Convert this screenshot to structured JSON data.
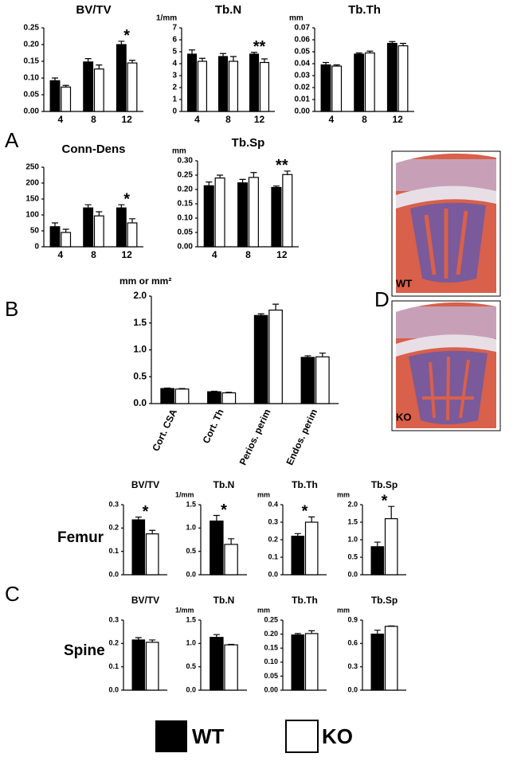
{
  "chart_data": [
    {
      "type": "bar",
      "title": "BV/TV",
      "categories": [
        "4",
        "8",
        "12"
      ],
      "ylim": [
        0,
        0.25
      ],
      "yticks": [
        {
          "value": 0,
          "label": "0.00"
        },
        {
          "value": 0.05,
          "label": "0.05"
        },
        {
          "value": 0.1,
          "label": "0.10"
        },
        {
          "value": 0.15,
          "label": "0.15"
        },
        {
          "value": 0.2,
          "label": "0.20"
        },
        {
          "value": 0.25,
          "label": "0.25"
        }
      ],
      "series": [
        {
          "name": "WT",
          "color": "#000000",
          "values": [
            0.092,
            0.148,
            0.2
          ],
          "errors": [
            0.008,
            0.01,
            0.01
          ]
        },
        {
          "name": "KO",
          "color": "#ffffff",
          "values": [
            0.073,
            0.127,
            0.145
          ],
          "errors": [
            0.005,
            0.012,
            0.008
          ]
        }
      ],
      "annotations": [
        null,
        null,
        "*"
      ]
    },
    {
      "type": "bar",
      "title": "Tb.N",
      "unit": "1/mm",
      "categories": [
        "4",
        "8",
        "12"
      ],
      "ylim": [
        0,
        7
      ],
      "yticks": [
        0,
        1,
        2,
        3,
        4,
        5,
        6,
        7
      ],
      "series": [
        {
          "name": "WT",
          "color": "#000000",
          "values": [
            4.8,
            4.6,
            4.8
          ],
          "errors": [
            0.35,
            0.25,
            0.15
          ]
        },
        {
          "name": "KO",
          "color": "#ffffff",
          "values": [
            4.2,
            4.2,
            4.1
          ],
          "errors": [
            0.25,
            0.4,
            0.3
          ]
        }
      ],
      "annotations": [
        null,
        null,
        "**"
      ]
    },
    {
      "type": "bar",
      "title": "Tb.Th",
      "unit": "mm",
      "categories": [
        "4",
        "8",
        "12"
      ],
      "ylim": [
        0,
        0.07
      ],
      "yticks": [
        {
          "value": 0,
          "label": "0.00"
        },
        {
          "value": 0.01,
          "label": "0.01"
        },
        {
          "value": 0.02,
          "label": "0.02"
        },
        {
          "value": 0.03,
          "label": "0.03"
        },
        {
          "value": 0.04,
          "label": "0.04"
        },
        {
          "value": 0.05,
          "label": "0.05"
        },
        {
          "value": 0.06,
          "label": "0.06"
        },
        {
          "value": 0.07,
          "label": "0.07"
        }
      ],
      "series": [
        {
          "name": "WT",
          "color": "#000000",
          "values": [
            0.039,
            0.048,
            0.057
          ],
          "errors": [
            0.002,
            0.001,
            0.0015
          ]
        },
        {
          "name": "KO",
          "color": "#ffffff",
          "values": [
            0.038,
            0.049,
            0.055
          ],
          "errors": [
            0.001,
            0.0015,
            0.002
          ]
        }
      ],
      "annotations": [
        null,
        null,
        null
      ]
    },
    {
      "type": "bar",
      "title": "Conn-Dens",
      "categories": [
        "4",
        "8",
        "12"
      ],
      "ylim": [
        0,
        250
      ],
      "yticks": [
        0,
        50,
        100,
        150,
        200,
        250
      ],
      "series": [
        {
          "name": "WT",
          "color": "#000000",
          "values": [
            63,
            122,
            122
          ],
          "errors": [
            12,
            10,
            10
          ]
        },
        {
          "name": "KO",
          "color": "#ffffff",
          "values": [
            45,
            97,
            75
          ],
          "errors": [
            10,
            13,
            13
          ]
        }
      ],
      "annotations": [
        null,
        null,
        "*"
      ]
    },
    {
      "type": "bar",
      "title": "Tb.Sp",
      "unit": "mm",
      "categories": [
        "4",
        "8",
        "12"
      ],
      "ylim": [
        0,
        0.3
      ],
      "yticks": [
        {
          "value": 0,
          "label": "0.00"
        },
        {
          "value": 0.05,
          "label": "0.05"
        },
        {
          "value": 0.1,
          "label": "0.10"
        },
        {
          "value": 0.15,
          "label": "0.15"
        },
        {
          "value": 0.2,
          "label": "0.20"
        },
        {
          "value": 0.25,
          "label": "0.25"
        },
        {
          "value": 0.3,
          "label": "0.30"
        }
      ],
      "series": [
        {
          "name": "WT",
          "color": "#000000",
          "values": [
            0.213,
            0.223,
            0.207
          ],
          "errors": [
            0.013,
            0.012,
            0.005
          ]
        },
        {
          "name": "KO",
          "color": "#ffffff",
          "values": [
            0.24,
            0.242,
            0.252
          ],
          "errors": [
            0.01,
            0.017,
            0.012
          ]
        }
      ],
      "annotations": [
        null,
        null,
        "**"
      ]
    },
    {
      "type": "bar",
      "unit": "mm or mm²",
      "categories": [
        "Cort. CSA",
        "Cort. Th",
        "Perios. perim",
        "Endos. perim"
      ],
      "ylim": [
        0,
        2
      ],
      "yticks": [
        {
          "value": 0,
          "label": "0.0"
        },
        0.5,
        {
          "value": 1,
          "label": "1.0"
        },
        1.5,
        {
          "value": 2,
          "label": "2.0"
        }
      ],
      "series": [
        {
          "name": "WT",
          "color": "#000000",
          "values": [
            0.28,
            0.22,
            1.64,
            0.86
          ],
          "errors": [
            0.01,
            0.01,
            0.03,
            0.03
          ]
        },
        {
          "name": "KO",
          "color": "#ffffff",
          "values": [
            0.27,
            0.2,
            1.74,
            0.87
          ],
          "errors": [
            0.01,
            0.01,
            0.11,
            0.07
          ]
        }
      ],
      "annotations": [
        null,
        null,
        null,
        null
      ]
    },
    {
      "type": "bar",
      "title": "BV/TV",
      "categories": [
        null
      ],
      "ylim": [
        0,
        0.3
      ],
      "yticks": [
        {
          "value": 0,
          "label": "0.0"
        },
        0.1,
        0.2,
        0.3
      ],
      "series": [
        {
          "name": "WT",
          "color": "#000000",
          "values": [
            0.235
          ],
          "errors": [
            0.012
          ]
        },
        {
          "name": "KO",
          "color": "#ffffff",
          "values": [
            0.175
          ],
          "errors": [
            0.015
          ]
        }
      ],
      "annotations": [
        "*"
      ]
    },
    {
      "type": "bar",
      "title": "Tb.N",
      "unit": "1/mm",
      "categories": [
        null
      ],
      "ylim": [
        0,
        1.5
      ],
      "yticks": [
        {
          "value": 0,
          "label": "0.0"
        },
        0.5,
        {
          "value": 1,
          "label": "1.0"
        },
        1.5
      ],
      "series": [
        {
          "name": "WT",
          "color": "#000000",
          "values": [
            1.15
          ],
          "errors": [
            0.12
          ]
        },
        {
          "name": "KO",
          "color": "#ffffff",
          "values": [
            0.65
          ],
          "errors": [
            0.12
          ]
        }
      ],
      "annotations": [
        "*"
      ]
    },
    {
      "type": "bar",
      "title": "Tb.Th",
      "unit": "mm",
      "categories": [
        null
      ],
      "ylim": [
        0,
        0.4
      ],
      "yticks": [
        {
          "value": 0,
          "label": "0.0"
        },
        0.1,
        0.2,
        0.3,
        0.4
      ],
      "series": [
        {
          "name": "WT",
          "color": "#000000",
          "values": [
            0.22
          ],
          "errors": [
            0.015
          ]
        },
        {
          "name": "KO",
          "color": "#ffffff",
          "values": [
            0.3
          ],
          "errors": [
            0.03
          ]
        }
      ],
      "annotations": [
        "*"
      ]
    },
    {
      "type": "bar",
      "title": "Tb.Sp",
      "unit": "mm",
      "categories": [
        null
      ],
      "ylim": [
        0,
        2
      ],
      "yticks": [
        {
          "value": 0,
          "label": "0.0"
        },
        0.5,
        {
          "value": 1,
          "label": "1.0"
        },
        1.5,
        {
          "value": 2,
          "label": "2.0"
        }
      ],
      "series": [
        {
          "name": "WT",
          "color": "#000000",
          "values": [
            0.8
          ],
          "errors": [
            0.13
          ]
        },
        {
          "name": "KO",
          "color": "#ffffff",
          "values": [
            1.6
          ],
          "errors": [
            0.35
          ]
        }
      ],
      "annotations": [
        "*"
      ]
    },
    {
      "type": "bar",
      "title": "BV/TV",
      "categories": [
        null
      ],
      "ylim": [
        0,
        0.3
      ],
      "yticks": [
        {
          "value": 0,
          "label": "0.0"
        },
        0.1,
        0.2,
        0.3
      ],
      "series": [
        {
          "name": "WT",
          "color": "#000000",
          "values": [
            0.215
          ],
          "errors": [
            0.01
          ]
        },
        {
          "name": "KO",
          "color": "#ffffff",
          "values": [
            0.205
          ],
          "errors": [
            0.01
          ]
        }
      ],
      "annotations": [
        null
      ]
    },
    {
      "type": "bar",
      "title": "Tb.N",
      "unit": "1/mm",
      "categories": [
        null
      ],
      "ylim": [
        0,
        1.5
      ],
      "yticks": [
        {
          "value": 0,
          "label": "0.0"
        },
        0.5,
        {
          "value": 1,
          "label": "1.0"
        },
        1.5
      ],
      "series": [
        {
          "name": "WT",
          "color": "#000000",
          "values": [
            1.13
          ],
          "errors": [
            0.06
          ]
        },
        {
          "name": "KO",
          "color": "#ffffff",
          "values": [
            0.97
          ],
          "errors": [
            0.01
          ]
        }
      ],
      "annotations": [
        null
      ]
    },
    {
      "type": "bar",
      "title": "Tb.Th",
      "unit": "mm",
      "categories": [
        null
      ],
      "ylim": [
        0,
        0.25
      ],
      "yticks": [
        {
          "value": 0,
          "label": "0.00"
        },
        {
          "value": 0.05,
          "label": "0.05"
        },
        {
          "value": 0.1,
          "label": "0.10"
        },
        {
          "value": 0.15,
          "label": "0.15"
        },
        {
          "value": 0.2,
          "label": "0.20"
        },
        {
          "value": 0.25,
          "label": "0.25"
        }
      ],
      "series": [
        {
          "name": "WT",
          "color": "#000000",
          "values": [
            0.197
          ],
          "errors": [
            0.005
          ]
        },
        {
          "name": "KO",
          "color": "#ffffff",
          "values": [
            0.202
          ],
          "errors": [
            0.01
          ]
        }
      ],
      "annotations": [
        null
      ]
    },
    {
      "type": "bar",
      "title": "Tb.Sp",
      "unit": "mm",
      "categories": [
        null
      ],
      "ylim": [
        0,
        0.9
      ],
      "yticks": [
        {
          "value": 0,
          "label": "0.0"
        },
        0.3,
        0.6,
        0.9
      ],
      "series": [
        {
          "name": "WT",
          "color": "#000000",
          "values": [
            0.72
          ],
          "errors": [
            0.05
          ]
        },
        {
          "name": "KO",
          "color": "#ffffff",
          "values": [
            0.82
          ],
          "errors": [
            0.005
          ]
        }
      ],
      "annotations": [
        null
      ]
    }
  ],
  "panel_labels": [
    "A",
    "B",
    "C",
    "D"
  ],
  "row_labels": [
    "Femur",
    "Spine"
  ],
  "images": [
    {
      "label": "WT"
    },
    {
      "label": "KO"
    }
  ]
}
